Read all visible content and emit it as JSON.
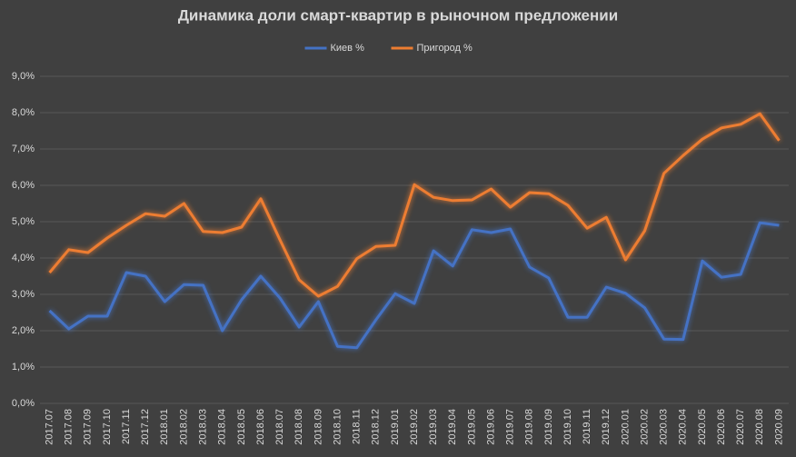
{
  "chart_data": {
    "type": "line",
    "title": "Динамика доли смарт-квартир в рыночном предложении",
    "categories": [
      "2017.07",
      "2017.08",
      "2017.09",
      "2017.10",
      "2017.11",
      "2017.12",
      "2018.01",
      "2018.02",
      "2018.03",
      "2018.04",
      "2018.05",
      "2018.06",
      "2018.07",
      "2018.08",
      "2018.09",
      "2018.10",
      "2018.11",
      "2018.12",
      "2019.01",
      "2019.02",
      "2019.03",
      "2019.04",
      "2019.05",
      "2019.06",
      "2019.07",
      "2019.08",
      "2019.09",
      "2019.10",
      "2019.11",
      "2019.12",
      "2020.01",
      "2020.02",
      "2020.03",
      "2020.04",
      "2020.05",
      "2020.06",
      "2020.07",
      "2020.08",
      "2020.09"
    ],
    "series": [
      {
        "name": "Киев %",
        "color": "#4472c4",
        "values": [
          2.55,
          2.05,
          2.4,
          2.4,
          3.6,
          3.5,
          2.8,
          3.27,
          3.25,
          2.0,
          2.85,
          3.5,
          2.9,
          2.1,
          2.8,
          1.57,
          1.53,
          2.3,
          3.02,
          2.75,
          4.2,
          3.78,
          4.78,
          4.7,
          4.8,
          3.75,
          3.45,
          2.37,
          2.37,
          3.2,
          3.03,
          2.63,
          1.77,
          1.76,
          3.92,
          3.47,
          3.55,
          4.97,
          4.9
        ]
      },
      {
        "name": "Пригород %",
        "color": "#ed7d31",
        "values": [
          3.6,
          4.23,
          4.15,
          4.55,
          4.9,
          5.22,
          5.15,
          5.5,
          4.73,
          4.7,
          4.85,
          5.63,
          4.5,
          3.4,
          2.95,
          3.22,
          3.98,
          4.32,
          4.35,
          6.02,
          5.67,
          5.58,
          5.6,
          5.9,
          5.4,
          5.8,
          5.77,
          5.45,
          4.82,
          5.12,
          3.95,
          4.75,
          6.33,
          6.82,
          7.27,
          7.58,
          7.68,
          7.97,
          7.23
        ]
      }
    ],
    "ylim": [
      0,
      9
    ],
    "yticks": [
      {
        "value": 0,
        "label": "0,0%"
      },
      {
        "value": 1,
        "label": "1,0%"
      },
      {
        "value": 2,
        "label": "2,0%"
      },
      {
        "value": 3,
        "label": "3,0%"
      },
      {
        "value": 4,
        "label": "4,0%"
      },
      {
        "value": 5,
        "label": "5,0%"
      },
      {
        "value": 6,
        "label": "6,0%"
      },
      {
        "value": 7,
        "label": "7,0%"
      },
      {
        "value": 8,
        "label": "8,0%"
      },
      {
        "value": 9,
        "label": "9,0%"
      }
    ],
    "grid": true,
    "legend": "top"
  }
}
